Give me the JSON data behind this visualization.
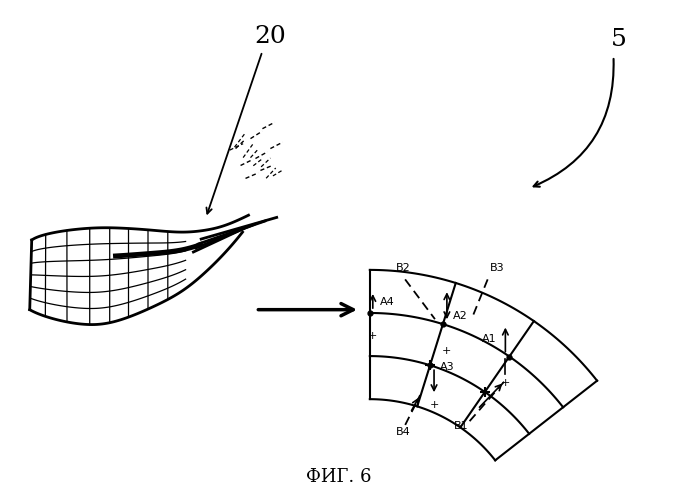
{
  "title": "ФИГ. 6",
  "label_20": "20",
  "label_5": "5",
  "bg_color": "#ffffff",
  "line_color": "#000000",
  "title_fontsize": 13,
  "label_fontsize": 14,
  "blade_lw": 2.0,
  "grid_lw": 1.5,
  "thin_lw": 0.9
}
